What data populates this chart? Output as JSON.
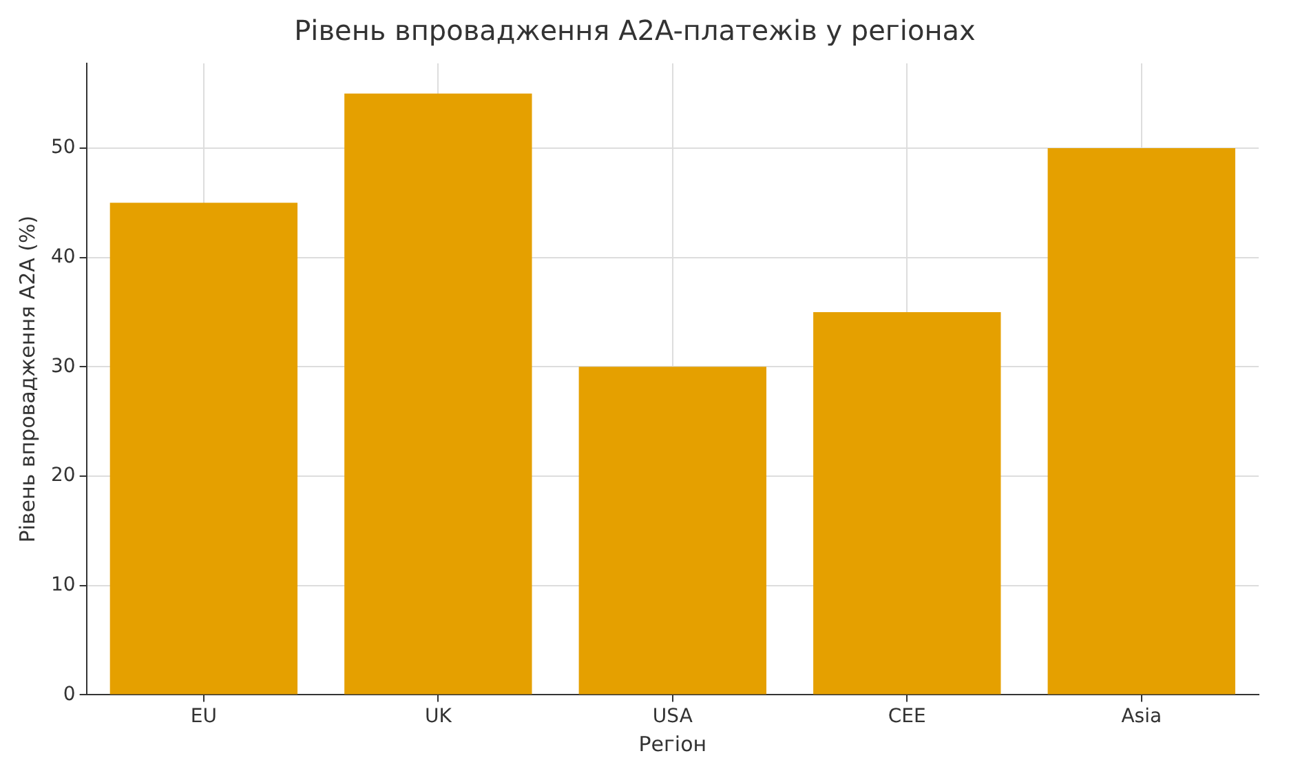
{
  "chart_data": {
    "type": "bar",
    "title": "Рівень впровадження A2A-платежів у регіонах",
    "xlabel": "Регіон",
    "ylabel": "Рівень впровадження A2A (%)",
    "categories": [
      "EU",
      "UK",
      "USA",
      "CEE",
      "Asia"
    ],
    "values": [
      45,
      55,
      30,
      35,
      50
    ],
    "color": "#e5a000",
    "ylim": [
      0,
      57.75
    ],
    "yticks": [
      0,
      10,
      20,
      30,
      40,
      50
    ],
    "grid": true
  }
}
